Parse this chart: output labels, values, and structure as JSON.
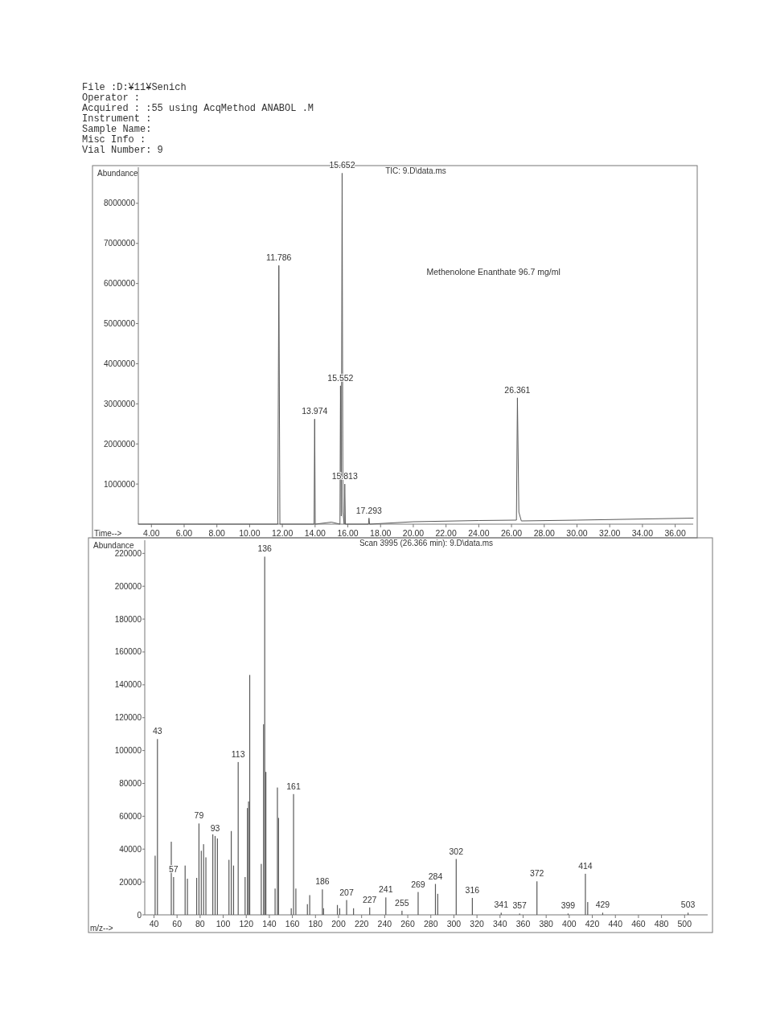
{
  "chart_data": [
    {
      "type": "line",
      "title": "TIC: 9.D\\data.ms",
      "subtitle": "Methenolone Enanthate 96.7 mg/ml",
      "xlabel": "Time-->",
      "ylabel": "Abundance",
      "annotations": [
        "File :D:¥11¥Senich",
        "Operator :",
        "Acquired : :55 using AcqMethod ANABOL .M",
        "Instrument :",
        "Sample Name:",
        "Misc Info :",
        "Vial Number: 9",
        {
          "text": "11.786",
          "x": 11.786,
          "y": 6450000
        },
        {
          "text": "13.974",
          "x": 13.974,
          "y": 2620000
        },
        {
          "text": "15.552",
          "x": 15.552,
          "y": 3450000
        },
        {
          "text": "15.652",
          "x": 15.652,
          "y": 8750000
        },
        {
          "text": "15.813",
          "x": 15.813,
          "y": 1000000
        },
        {
          "text": "17.293",
          "x": 17.293,
          "y": 150000
        },
        {
          "text": "26.361",
          "x": 26.361,
          "y": 3150000
        }
      ],
      "x": [
        3.2,
        11.72,
        11.786,
        11.85,
        13.94,
        13.974,
        14.01,
        15.0,
        15.52,
        15.552,
        15.6,
        15.652,
        15.7,
        15.78,
        15.813,
        15.85,
        17.26,
        17.293,
        17.33,
        20.0,
        24.0,
        26.3,
        26.361,
        26.45,
        26.6,
        30.0,
        37.1
      ],
      "values": [
        0,
        0,
        6450000,
        0,
        0,
        2620000,
        0,
        50000,
        0,
        3450000,
        200000,
        8750000,
        300000,
        0,
        1000000,
        0,
        0,
        150000,
        0,
        60000,
        90000,
        100000,
        3150000,
        300000,
        80000,
        100000,
        150000
      ],
      "color": "#5a5a5a",
      "xlim": [
        3.2,
        37.1
      ],
      "ylim": [
        0,
        8900000
      ],
      "xticks": [
        {
          "value": 4,
          "label": "4.00"
        },
        {
          "value": 6,
          "label": "6.00"
        },
        {
          "value": 8,
          "label": "8.00"
        },
        {
          "value": 10,
          "label": "10.00"
        },
        {
          "value": 12,
          "label": "12.00"
        },
        {
          "value": 14,
          "label": "14.00"
        },
        {
          "value": 16,
          "label": "16.00"
        },
        {
          "value": 18,
          "label": "18.00"
        },
        {
          "value": 20,
          "label": "20.00"
        },
        {
          "value": 22,
          "label": "22.00"
        },
        {
          "value": 24,
          "label": "24.00"
        },
        {
          "value": 26,
          "label": "26.00"
        },
        {
          "value": 28,
          "label": "28.00"
        },
        {
          "value": 30,
          "label": "30.00"
        },
        {
          "value": 32,
          "label": "32.00"
        },
        {
          "value": 34,
          "label": "34.00"
        },
        {
          "value": 36,
          "label": "36.00"
        }
      ],
      "yticks": [
        1000000,
        2000000,
        3000000,
        4000000,
        5000000,
        6000000,
        7000000,
        8000000
      ]
    },
    {
      "type": "bar",
      "title": "Scan 3995 (26.366 min): 9.D\\data.ms",
      "xlabel": "m/z-->",
      "ylabel": "Abundance",
      "annotations": [
        {
          "text": "43",
          "x": 43,
          "y": 107000
        },
        {
          "text": "57",
          "x": 57,
          "y": 23000
        },
        {
          "text": "79",
          "x": 79,
          "y": 55600
        },
        {
          "text": "93",
          "x": 93,
          "y": 48000
        },
        {
          "text": "113",
          "x": 113,
          "y": 93000
        },
        {
          "text": "136",
          "x": 136,
          "y": 218000
        },
        {
          "text": "161",
          "x": 161,
          "y": 73500
        },
        {
          "text": "186",
          "x": 186,
          "y": 15500
        },
        {
          "text": "207",
          "x": 207,
          "y": 9000
        },
        {
          "text": "227",
          "x": 227,
          "y": 4500
        },
        {
          "text": "241",
          "x": 241,
          "y": 10600
        },
        {
          "text": "255",
          "x": 255,
          "y": 2500
        },
        {
          "text": "269",
          "x": 269,
          "y": 13900
        },
        {
          "text": "284",
          "x": 284,
          "y": 18800
        },
        {
          "text": "302",
          "x": 302,
          "y": 34000
        },
        {
          "text": "316",
          "x": 316,
          "y": 10300
        },
        {
          "text": "341",
          "x": 341,
          "y": 1300
        },
        {
          "text": "357",
          "x": 357,
          "y": 800
        },
        {
          "text": "372",
          "x": 372,
          "y": 20400
        },
        {
          "text": "399",
          "x": 399,
          "y": 800
        },
        {
          "text": "414",
          "x": 414,
          "y": 25000
        },
        {
          "text": "429",
          "x": 429,
          "y": 1300
        },
        {
          "text": "503",
          "x": 503,
          "y": 1300
        }
      ],
      "x": [
        41,
        43,
        55,
        57,
        67,
        69,
        77,
        79,
        81,
        83,
        85,
        91,
        93,
        95,
        105,
        107,
        109,
        113,
        119,
        121,
        122,
        123,
        133,
        135,
        136,
        137,
        145,
        147,
        148,
        159,
        161,
        163,
        173,
        175,
        186,
        187,
        199,
        201,
        207,
        213,
        227,
        241,
        255,
        269,
        284,
        286,
        302,
        316,
        341,
        357,
        372,
        399,
        414,
        416,
        429,
        503
      ],
      "values": [
        36000,
        107000,
        44500,
        23000,
        30000,
        22000,
        22500,
        55600,
        39000,
        43000,
        35000,
        49000,
        48000,
        46500,
        33500,
        51000,
        30000,
        93000,
        23000,
        65000,
        69000,
        146000,
        31000,
        116000,
        218000,
        87000,
        16000,
        77500,
        59000,
        4000,
        73500,
        16000,
        6500,
        12000,
        15500,
        4000,
        6000,
        4000,
        9000,
        4000,
        4500,
        10600,
        2500,
        13900,
        18800,
        12800,
        34000,
        10300,
        1300,
        800,
        20400,
        800,
        25000,
        7800,
        1300,
        1300
      ],
      "color": "#5a5a5a",
      "xlim": [
        32,
        520
      ],
      "ylim": [
        0,
        228000
      ],
      "xticks": [
        40,
        60,
        80,
        100,
        120,
        140,
        160,
        180,
        200,
        220,
        240,
        260,
        280,
        300,
        320,
        340,
        360,
        380,
        400,
        420,
        440,
        460,
        480,
        500
      ],
      "yticks": [
        0,
        20000,
        40000,
        60000,
        80000,
        100000,
        120000,
        140000,
        160000,
        180000,
        200000,
        220000
      ]
    }
  ]
}
